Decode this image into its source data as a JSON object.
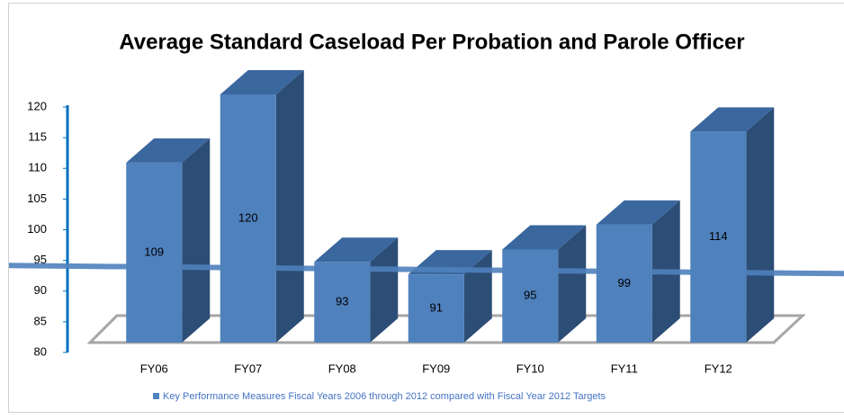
{
  "chart_data": {
    "type": "bar3d",
    "title": "Average Standard Caseload Per Probation and Parole Officer",
    "categories": [
      "FY06",
      "FY07",
      "FY08",
      "FY09",
      "FY10",
      "FY11",
      "FY12"
    ],
    "series": [
      {
        "name": "Key Performance Measures Fiscal Years 2006 through  2012 compared with Fiscal Year 2012 Targets",
        "color": "#4f81bd",
        "values": [
          109,
          120,
          93,
          91,
          95,
          99,
          114
        ]
      }
    ],
    "target_line": 93,
    "ylim": [
      80,
      120
    ],
    "yticks": [
      80,
      85,
      90,
      95,
      100,
      105,
      110,
      115,
      120
    ]
  }
}
